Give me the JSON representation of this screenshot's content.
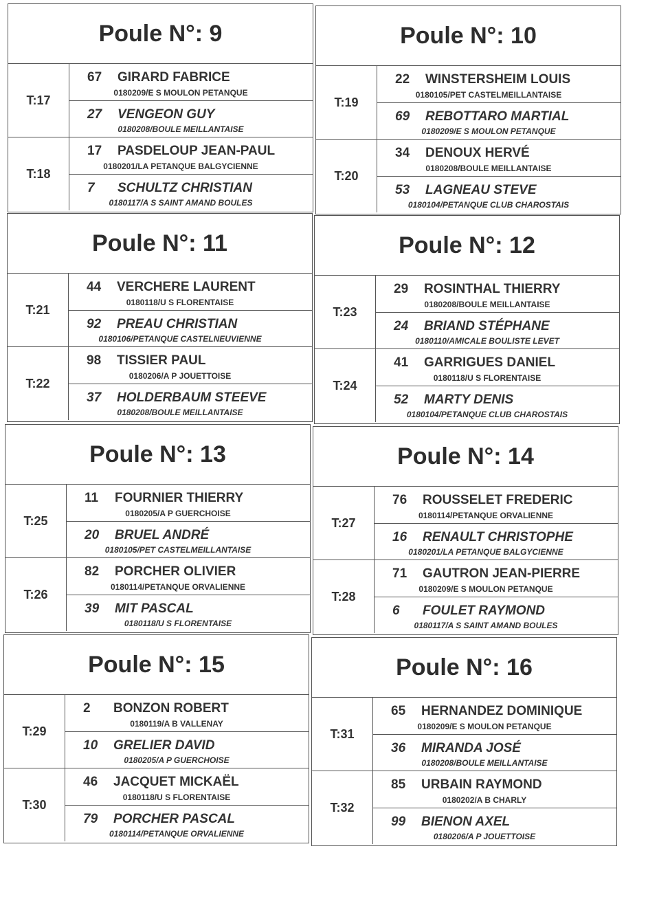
{
  "poules": [
    {
      "title": "Poule N°: 9",
      "tables": [
        {
          "t": "T:17",
          "players": [
            {
              "num": "67",
              "name": "GIRARD FABRICE",
              "club": "0180209/E S  MOULON PETANQUE"
            },
            {
              "num": "27",
              "name": "VENGEON GUY",
              "club": "0180208/BOULE MEILLANTAISE"
            }
          ]
        },
        {
          "t": "T:18",
          "players": [
            {
              "num": "17",
              "name": "PASDELOUP JEAN-PAUL",
              "club": "0180201/LA PETANQUE BALGYCIENNE"
            },
            {
              "num": "7",
              "name": "SCHULTZ CHRISTIAN",
              "club": "0180117/A S  SAINT AMAND BOULES"
            }
          ]
        }
      ]
    },
    {
      "title": "Poule N°: 10",
      "tables": [
        {
          "t": "T:19",
          "players": [
            {
              "num": "22",
              "name": "WINSTERSHEIM LOUIS",
              "club": "0180105/PET  CASTELMEILLANTAISE"
            },
            {
              "num": "69",
              "name": "REBOTTARO MARTIAL",
              "club": "0180209/E S  MOULON PETANQUE"
            }
          ]
        },
        {
          "t": "T:20",
          "players": [
            {
              "num": "34",
              "name": "DENOUX HERVÉ",
              "club": "0180208/BOULE MEILLANTAISE"
            },
            {
              "num": "53",
              "name": "LAGNEAU STEVE",
              "club": "0180104/PETANQUE CLUB CHAROSTAIS"
            }
          ]
        }
      ]
    },
    {
      "title": "Poule N°: 11",
      "tables": [
        {
          "t": "T:21",
          "players": [
            {
              "num": "44",
              "name": "VERCHERE LAURENT",
              "club": "0180118/U  S  FLORENTAISE"
            },
            {
              "num": "92",
              "name": "PREAU CHRISTIAN",
              "club": "0180106/PETANQUE CASTELNEUVIENNE"
            }
          ]
        },
        {
          "t": "T:22",
          "players": [
            {
              "num": "98",
              "name": "TISSIER PAUL",
              "club": "0180206/A  P JOUETTOISE"
            },
            {
              "num": "37",
              "name": "HOLDERBAUM STEEVE",
              "club": "0180208/BOULE MEILLANTAISE"
            }
          ]
        }
      ]
    },
    {
      "title": "Poule N°: 12",
      "tables": [
        {
          "t": "T:23",
          "players": [
            {
              "num": "29",
              "name": "ROSINTHAL THIERRY",
              "club": "0180208/BOULE MEILLANTAISE"
            },
            {
              "num": "24",
              "name": "BRIAND STÉPHANE",
              "club": "0180110/AMICALE BOULISTE  LEVET"
            }
          ]
        },
        {
          "t": "T:24",
          "players": [
            {
              "num": "41",
              "name": "GARRIGUES DANIEL",
              "club": "0180118/U  S  FLORENTAISE"
            },
            {
              "num": "52",
              "name": "MARTY DENIS",
              "club": "0180104/PETANQUE CLUB CHAROSTAIS"
            }
          ]
        }
      ]
    },
    {
      "title": "Poule N°: 13",
      "tables": [
        {
          "t": "T:25",
          "players": [
            {
              "num": "11",
              "name": "FOURNIER THIERRY",
              "club": "0180205/A  P  GUERCHOISE"
            },
            {
              "num": "20",
              "name": "BRUEL ANDRÉ",
              "club": "0180105/PET  CASTELMEILLANTAISE"
            }
          ]
        },
        {
          "t": "T:26",
          "players": [
            {
              "num": "82",
              "name": "PORCHER OLIVIER",
              "club": "0180114/PETANQUE ORVALIENNE"
            },
            {
              "num": "39",
              "name": "MIT PASCAL",
              "club": "0180118/U  S  FLORENTAISE"
            }
          ]
        }
      ]
    },
    {
      "title": "Poule N°: 14",
      "tables": [
        {
          "t": "T:27",
          "players": [
            {
              "num": "76",
              "name": "ROUSSELET FREDERIC",
              "club": "0180114/PETANQUE ORVALIENNE"
            },
            {
              "num": "16",
              "name": "RENAULT CHRISTOPHE",
              "club": "0180201/LA PETANQUE BALGYCIENNE"
            }
          ]
        },
        {
          "t": "T:28",
          "players": [
            {
              "num": "71",
              "name": "GAUTRON JEAN-PIERRE",
              "club": "0180209/E S  MOULON PETANQUE"
            },
            {
              "num": "6",
              "name": "FOULET RAYMOND",
              "club": "0180117/A S  SAINT AMAND BOULES"
            }
          ]
        }
      ]
    },
    {
      "title": "Poule N°: 15",
      "tables": [
        {
          "t": "T:29",
          "players": [
            {
              "num": "2",
              "name": "BONZON ROBERT",
              "club": "0180119/A B  VALLENAY"
            },
            {
              "num": "10",
              "name": "GRELIER DAVID",
              "club": "0180205/A  P  GUERCHOISE"
            }
          ]
        },
        {
          "t": "T:30",
          "players": [
            {
              "num": "46",
              "name": "JACQUET MICKAËL",
              "club": "0180118/U  S  FLORENTAISE"
            },
            {
              "num": "79",
              "name": "PORCHER PASCAL",
              "club": "0180114/PETANQUE ORVALIENNE"
            }
          ]
        }
      ]
    },
    {
      "title": "Poule N°: 16",
      "tables": [
        {
          "t": "T:31",
          "players": [
            {
              "num": "65",
              "name": "HERNANDEZ DOMINIQUE",
              "club": "0180209/E S  MOULON PETANQUE"
            },
            {
              "num": "36",
              "name": "MIRANDA JOSÉ",
              "club": "0180208/BOULE MEILLANTAISE"
            }
          ]
        },
        {
          "t": "T:32",
          "players": [
            {
              "num": "85",
              "name": "URBAIN RAYMOND",
              "club": "0180202/A B  CHARLY"
            },
            {
              "num": "99",
              "name": "BIENON AXEL",
              "club": "0180206/A  P JOUETTOISE"
            }
          ]
        }
      ]
    }
  ]
}
